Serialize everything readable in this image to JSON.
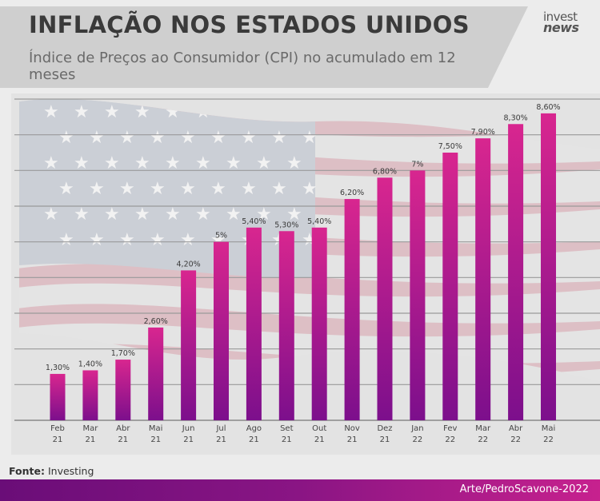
{
  "header": {
    "title": "INFLAÇÃO NOS ESTADOS UNIDOS",
    "subtitle": "Índice de Preços ao Consumidor (CPI) no acumulado em 12 meses",
    "logo_top": "invest",
    "logo_bottom": "news"
  },
  "footer": {
    "source_label": "Fonte:",
    "source_value": "Investing",
    "credit": "Arte/PedroScavone-2022"
  },
  "colors": {
    "bar_top": "#d8268f",
    "bar_bottom": "#7c0f8c",
    "footer_start": "#6a0d78",
    "footer_end": "#c7218e",
    "header_band": "#cfcfcf"
  },
  "chart_data": {
    "type": "bar",
    "categories": [
      [
        "Feb",
        "21"
      ],
      [
        "Mar",
        "21"
      ],
      [
        "Abr",
        "21"
      ],
      [
        "Mai",
        "21"
      ],
      [
        "Jun",
        "21"
      ],
      [
        "Jul",
        "21"
      ],
      [
        "Ago",
        "21"
      ],
      [
        "Set",
        "21"
      ],
      [
        "Out",
        "21"
      ],
      [
        "Nov",
        "21"
      ],
      [
        "Dez",
        "21"
      ],
      [
        "Jan",
        "22"
      ],
      [
        "Fev",
        "22"
      ],
      [
        "Mar",
        "22"
      ],
      [
        "Abr",
        "22"
      ],
      [
        "Mai",
        "22"
      ]
    ],
    "values": [
      1.3,
      1.4,
      1.7,
      2.6,
      4.2,
      5,
      5.4,
      5.3,
      5.4,
      6.2,
      6.8,
      7,
      7.5,
      7.9,
      8.3,
      8.6
    ],
    "data_labels": [
      "1,30%",
      "1,40%",
      "1,70%",
      "2,60%",
      "4,20%",
      "5%",
      "5,40%",
      "5,30%",
      "5,40%",
      "6,20%",
      "6,80%",
      "7%",
      "7,50%",
      "7,90%",
      "8,30%",
      "8,60%"
    ],
    "ylim": [
      0,
      9
    ],
    "grid": true,
    "gridline_values": [
      1,
      2,
      3,
      4,
      5,
      6,
      7,
      8,
      9
    ],
    "show_y_axis_labels": false
  }
}
